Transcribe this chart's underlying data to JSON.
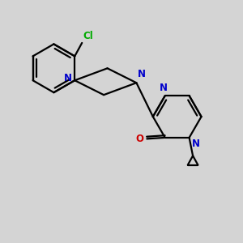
{
  "background_color": "#d4d4d4",
  "bond_color": "#000000",
  "N_color": "#0000cc",
  "O_color": "#cc0000",
  "Cl_color": "#00aa00",
  "line_width": 1.6,
  "figsize": [
    3.0,
    3.0
  ],
  "dpi": 100,
  "xlim": [
    0,
    10
  ],
  "ylim": [
    0,
    10
  ]
}
